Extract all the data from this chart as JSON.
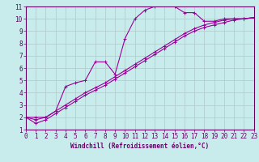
{
  "xlabel": "Windchill (Refroidissement éolien,°C)",
  "background_color": "#c8ecec",
  "line_color": "#990099",
  "xlim": [
    0,
    23
  ],
  "ylim": [
    1,
    11
  ],
  "xticks": [
    0,
    1,
    2,
    3,
    4,
    5,
    6,
    7,
    8,
    9,
    10,
    11,
    12,
    13,
    14,
    15,
    16,
    17,
    18,
    19,
    20,
    21,
    22,
    23
  ],
  "yticks": [
    1,
    2,
    3,
    4,
    5,
    6,
    7,
    8,
    9,
    10,
    11
  ],
  "grid_color": "#b0c8c8",
  "line1_x": [
    0,
    1,
    2,
    3,
    4,
    5,
    6,
    7,
    8,
    9,
    10,
    11,
    12,
    13,
    14,
    15,
    16,
    17,
    18,
    19,
    20,
    21,
    22,
    23
  ],
  "line1_y": [
    2,
    2,
    2,
    2.5,
    4.5,
    4.8,
    5.0,
    6.5,
    6.5,
    5.5,
    8.4,
    10.0,
    10.7,
    11.0,
    11.1,
    11.0,
    10.5,
    10.5,
    9.8,
    9.8,
    10.0,
    10.0,
    10.0,
    10.1
  ],
  "line2_x": [
    0,
    1,
    2,
    3,
    4,
    5,
    6,
    7,
    8,
    9,
    10,
    11,
    12,
    13,
    14,
    15,
    16,
    17,
    18,
    19,
    20,
    21,
    22,
    23
  ],
  "line2_y": [
    2.0,
    1.8,
    2.0,
    2.5,
    3.0,
    3.5,
    4.0,
    4.4,
    4.8,
    5.3,
    5.8,
    6.3,
    6.8,
    7.3,
    7.8,
    8.3,
    8.8,
    9.2,
    9.5,
    9.7,
    9.9,
    10.0,
    10.0,
    10.1
  ],
  "line3_x": [
    0,
    1,
    2,
    3,
    4,
    5,
    6,
    7,
    8,
    9,
    10,
    11,
    12,
    13,
    14,
    15,
    16,
    17,
    18,
    19,
    20,
    21,
    22,
    23
  ],
  "line3_y": [
    2.0,
    1.5,
    1.8,
    2.3,
    2.8,
    3.3,
    3.8,
    4.2,
    4.6,
    5.1,
    5.6,
    6.1,
    6.6,
    7.1,
    7.6,
    8.1,
    8.6,
    9.0,
    9.3,
    9.5,
    9.7,
    9.9,
    10.0,
    10.1
  ],
  "marker": "+",
  "markersize": 3,
  "linewidth": 0.8,
  "xlabel_fontsize": 5.5,
  "tick_fontsize": 5.5,
  "xlabel_color": "#660066",
  "tick_color": "#660066",
  "axis_color": "#660066"
}
